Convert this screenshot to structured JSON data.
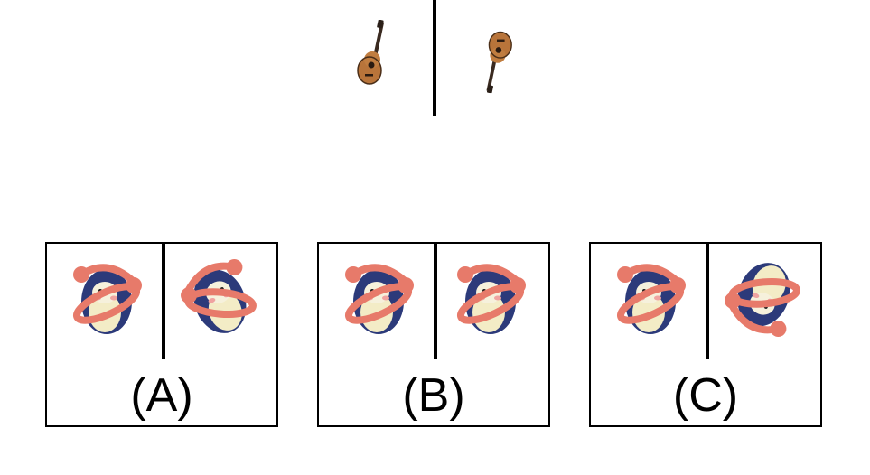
{
  "reference": {
    "object": "guitar-icon"
  },
  "options": [
    {
      "label": "(A)",
      "object": "penguin-toy-icon"
    },
    {
      "label": "(B)",
      "object": "penguin-toy-icon"
    },
    {
      "label": "(C)",
      "object": "penguin-toy-icon"
    }
  ],
  "colors": {
    "divider": "#000000",
    "guitar_body": "#b8743a",
    "toy_body": "#2c3a7a",
    "toy_ring": "#e77a6a",
    "toy_belly": "#f3ecc6"
  }
}
